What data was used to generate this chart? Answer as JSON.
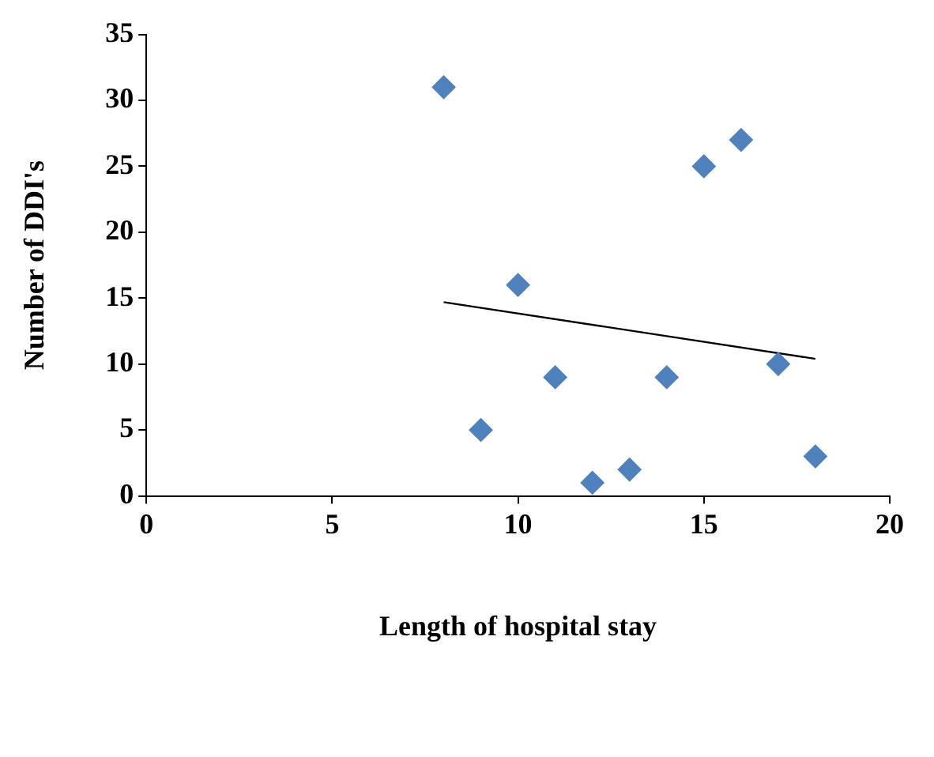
{
  "chart_data": {
    "type": "scatter",
    "xlabel": "Length of hospital stay",
    "ylabel": "Number of DDI's",
    "xlim": [
      0,
      20
    ],
    "xticks": [
      0,
      5,
      10,
      15,
      20
    ],
    "ylim": [
      0,
      35
    ],
    "yticks": [
      0,
      5,
      10,
      15,
      20,
      25,
      30,
      35
    ],
    "grid": false,
    "legend": false,
    "marker": "diamond",
    "series": [
      {
        "type": "scatter",
        "color": "#4f81bd",
        "x": [
          8,
          9,
          10,
          11,
          12,
          13,
          14,
          15,
          16,
          17,
          18
        ],
        "values": [
          31,
          5,
          16,
          9,
          1,
          2,
          9,
          25,
          27,
          10,
          3
        ]
      },
      {
        "type": "line",
        "color": "#000000",
        "marker": "none",
        "x": [
          8,
          18
        ],
        "values": [
          14.7,
          10.4
        ]
      }
    ]
  }
}
